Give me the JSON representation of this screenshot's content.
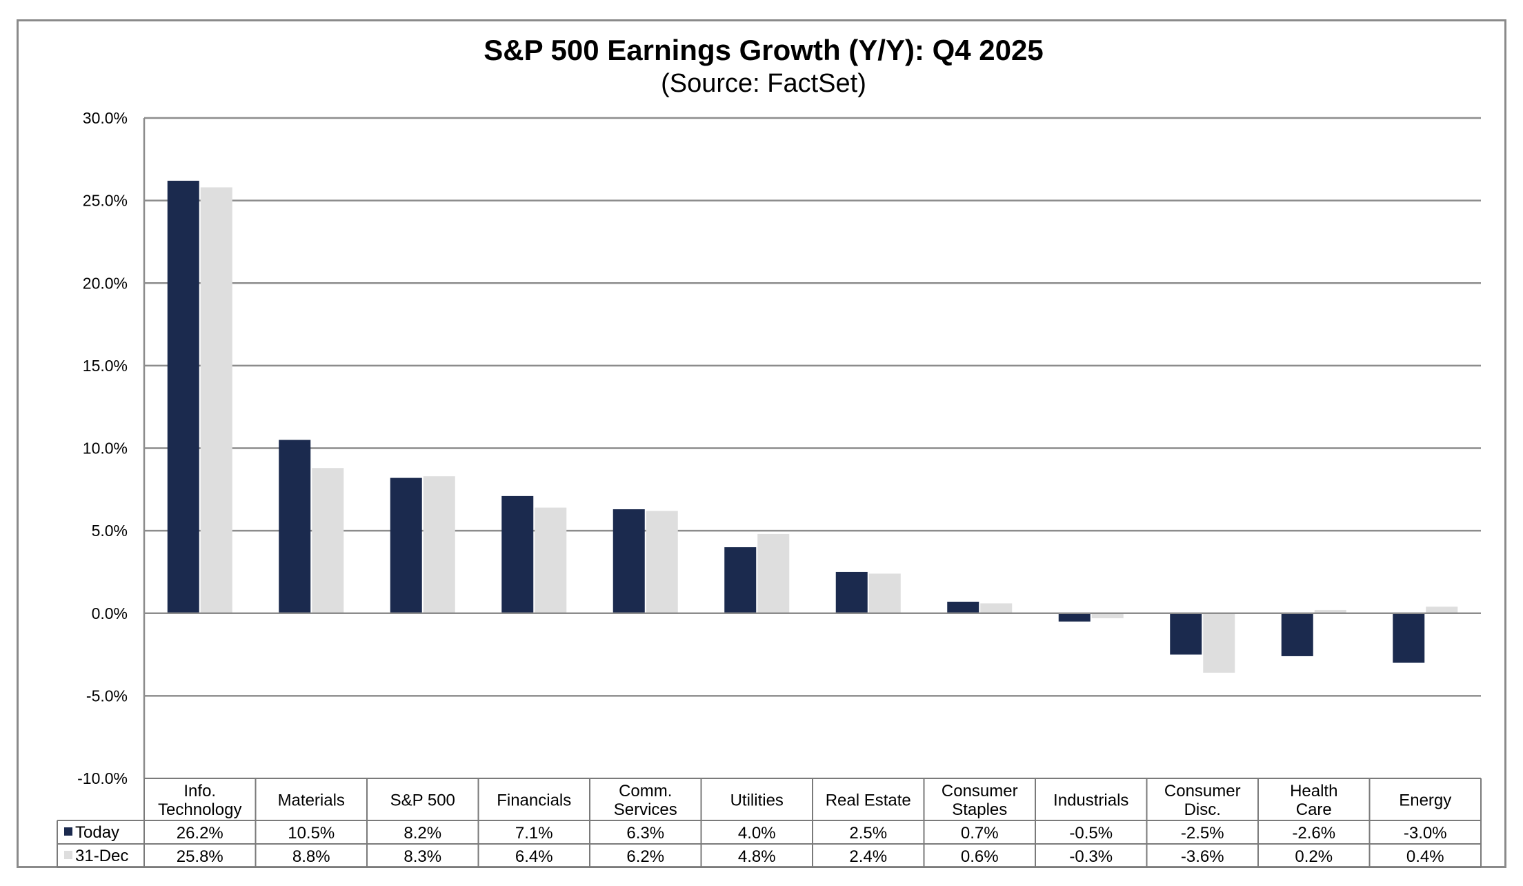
{
  "chart_data": {
    "type": "bar",
    "title": "S&P 500 Earnings Growth (Y/Y): Q4 2025",
    "subtitle": "(Source: FactSet)",
    "categories": [
      [
        "Info.",
        "Technology"
      ],
      [
        "Materials"
      ],
      [
        "S&P 500"
      ],
      [
        "Financials"
      ],
      [
        "Comm.",
        "Services"
      ],
      [
        "Utilities"
      ],
      [
        "Real Estate"
      ],
      [
        "Consumer",
        "Staples"
      ],
      [
        "Industrials"
      ],
      [
        "Consumer",
        "Disc."
      ],
      [
        "Health",
        "Care"
      ],
      [
        "Energy"
      ]
    ],
    "series": [
      {
        "name": "Today",
        "color": "#1b2a4e",
        "values": [
          26.2,
          10.5,
          8.2,
          7.1,
          6.3,
          4.0,
          2.5,
          0.7,
          -0.5,
          -2.5,
          -2.6,
          -3.0
        ],
        "labels": [
          "26.2%",
          "10.5%",
          "8.2%",
          "7.1%",
          "6.3%",
          "4.0%",
          "2.5%",
          "0.7%",
          "-0.5%",
          "-2.5%",
          "-2.6%",
          "-3.0%"
        ]
      },
      {
        "name": "31-Dec",
        "color": "#dedede",
        "values": [
          25.8,
          8.8,
          8.3,
          6.4,
          6.2,
          4.8,
          2.4,
          0.6,
          -0.3,
          -3.6,
          0.2,
          0.4
        ],
        "labels": [
          "25.8%",
          "8.8%",
          "8.3%",
          "6.4%",
          "6.2%",
          "4.8%",
          "2.4%",
          "0.6%",
          "-0.3%",
          "-3.6%",
          "0.2%",
          "0.4%"
        ]
      }
    ],
    "ylim": [
      -10,
      30
    ],
    "yticks": [
      30,
      25,
      20,
      15,
      10,
      5,
      0,
      -5,
      -10
    ],
    "ytick_labels": [
      "30.0%",
      "25.0%",
      "20.0%",
      "15.0%",
      "10.0%",
      "5.0%",
      "0.0%",
      "-5.0%",
      "-10.0%"
    ],
    "grid": true,
    "legend": "data-table"
  }
}
